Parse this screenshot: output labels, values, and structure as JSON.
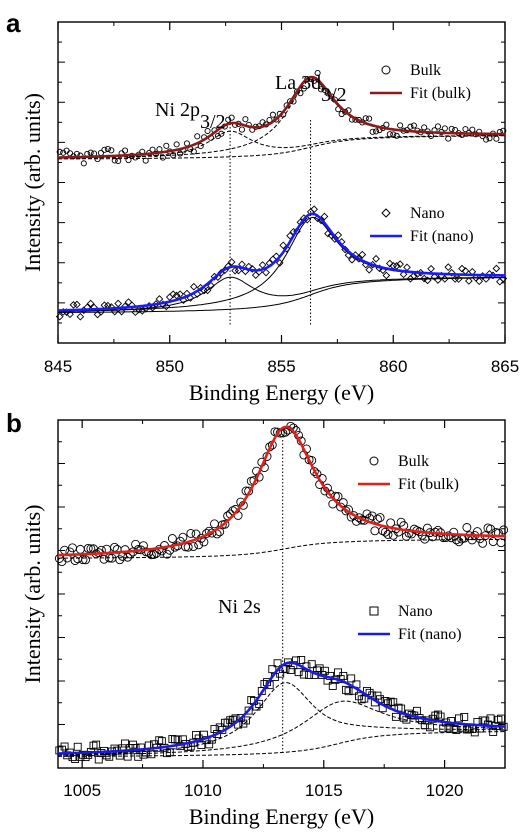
{
  "chart_data": [
    {
      "panel": "a",
      "type": "line",
      "xlabel": "Binding Energy (eV)",
      "ylabel": "Intensity (arb. units)",
      "xlim": [
        845,
        865
      ],
      "xticks": [
        845,
        850,
        855,
        860,
        865
      ],
      "ylim": [
        0,
        1
      ],
      "annotations": [
        {
          "text": "Ni 2p",
          "sub": "3/2",
          "x": 852.7
        },
        {
          "text": "La 3d",
          "sub": "3/2",
          "x": 856.3
        }
      ],
      "vlines": [
        852.7,
        856.3
      ],
      "legend": {
        "top": [
          {
            "symbol": "○",
            "label": "Bulk"
          },
          {
            "symbol": "line",
            "label": "Fit (bulk)",
            "color": "#8b1a1a"
          }
        ],
        "bottom": [
          {
            "symbol": "◇",
            "label": "Nano"
          },
          {
            "symbol": "line",
            "label": "Fit (nano)",
            "color": "#1a1aff"
          }
        ]
      },
      "series": [
        {
          "name": "Bulk",
          "kind": "markers",
          "marker": "circle",
          "offset": 0.55,
          "bg": 0.02,
          "step": 0.08,
          "peaks": [
            {
              "c": 852.7,
              "a": 0.08,
              "w": 1.2
            },
            {
              "c": 856.3,
              "a": 0.21,
              "w": 1.3
            }
          ]
        },
        {
          "name": "Fit (bulk)",
          "kind": "fit",
          "color": "#8b1a1a",
          "offset": 0.55,
          "bg": 0.02,
          "step": 0.08,
          "peaks": [
            {
              "c": 852.7,
              "a": 0.08,
              "w": 1.2
            },
            {
              "c": 856.3,
              "a": 0.21,
              "w": 1.3
            }
          ]
        },
        {
          "name": "Nano",
          "kind": "markers",
          "marker": "diamond",
          "offset": 0.07,
          "bg": 0.02,
          "step": 0.12,
          "peaks": [
            {
              "c": 852.7,
              "a": 0.1,
              "w": 1.3
            },
            {
              "c": 856.3,
              "a": 0.24,
              "w": 1.4
            }
          ]
        },
        {
          "name": "Fit (nano)",
          "kind": "fit",
          "color": "#1a1aff",
          "offset": 0.07,
          "bg": 0.02,
          "step": 0.12,
          "peaks": [
            {
              "c": 852.7,
              "a": 0.1,
              "w": 1.3
            },
            {
              "c": 856.3,
              "a": 0.24,
              "w": 1.4
            }
          ]
        }
      ]
    },
    {
      "panel": "b",
      "type": "line",
      "xlabel": "Binding Energy (eV)",
      "ylabel": "Intensity (arb. units)",
      "xlim": [
        1004,
        1022.5
      ],
      "xticks": [
        1005,
        1010,
        1015,
        1020
      ],
      "ylim": [
        0,
        1
      ],
      "annotations": [
        {
          "text": "Ni 2s",
          "sub": "",
          "x": 1013.2
        }
      ],
      "vlines": [
        1013.3
      ],
      "legend": {
        "top": [
          {
            "symbol": "○",
            "label": "Bulk"
          },
          {
            "symbol": "line",
            "label": "Fit (bulk)",
            "color": "#e0201a"
          }
        ],
        "bottom": [
          {
            "symbol": "□",
            "label": "Nano"
          },
          {
            "symbol": "line",
            "label": "Fit (nano)",
            "color": "#1a1ae6"
          }
        ]
      },
      "series": [
        {
          "name": "Bulk",
          "kind": "markers",
          "marker": "circle",
          "offset": 0.6,
          "bg": 0.0,
          "step": 0.06,
          "peaks": [
            {
              "c": 1013.4,
              "a": 0.35,
              "w": 1.5
            }
          ]
        },
        {
          "name": "Fit (bulk)",
          "kind": "fit",
          "color": "#e0201a",
          "offset": 0.6,
          "bg": 0.0,
          "step": 0.06,
          "peaks": [
            {
              "c": 1013.4,
              "a": 0.35,
              "w": 1.5
            }
          ]
        },
        {
          "name": "Nano",
          "kind": "markers",
          "marker": "square",
          "offset": 0.03,
          "bg": 0.0,
          "step": 0.08,
          "peaks": [
            {
              "c": 1013.4,
              "a": 0.2,
              "w": 1.5
            },
            {
              "c": 1015.6,
              "a": 0.12,
              "w": 2.0
            }
          ]
        },
        {
          "name": "Fit (nano)",
          "kind": "fit",
          "color": "#1a1ae6",
          "offset": 0.03,
          "bg": 0.0,
          "step": 0.08,
          "peaks": [
            {
              "c": 1013.4,
              "a": 0.2,
              "w": 1.5
            },
            {
              "c": 1015.6,
              "a": 0.12,
              "w": 2.0
            }
          ]
        }
      ]
    }
  ],
  "labels": {
    "panel_a": "a",
    "panel_b": "b"
  }
}
